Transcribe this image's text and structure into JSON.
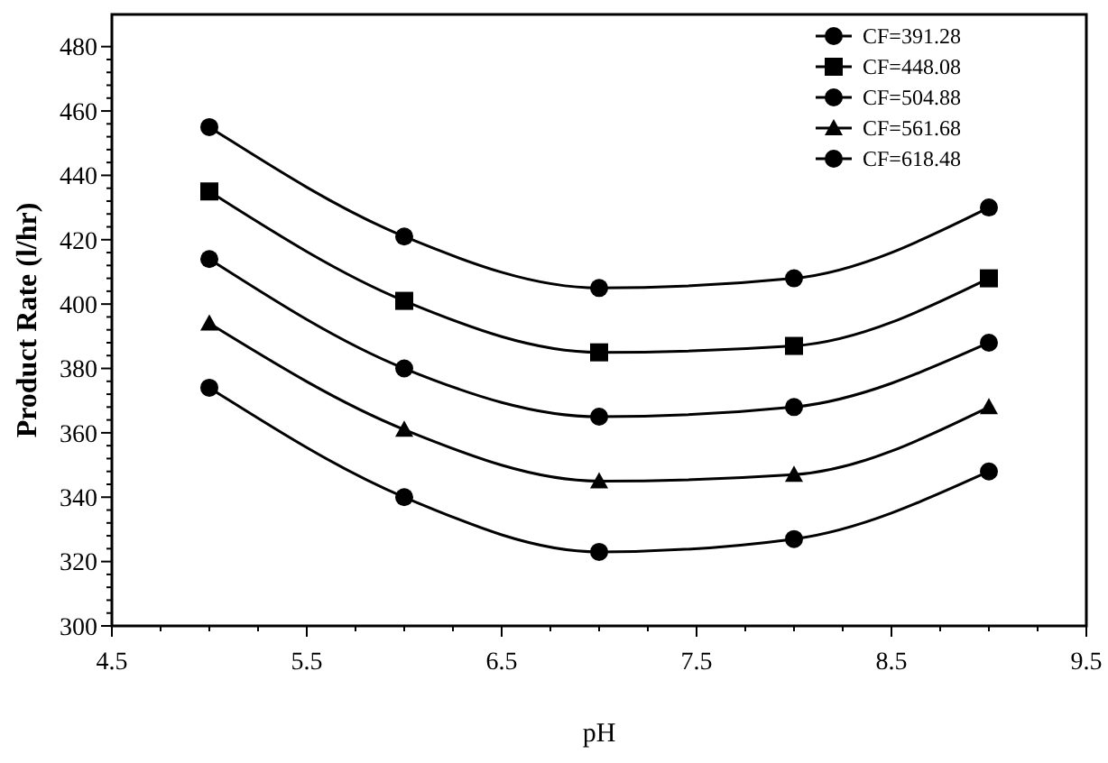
{
  "chart_data": {
    "type": "line",
    "xlabel": "pH",
    "ylabel": "Product Rate (l/hr)",
    "x": [
      5,
      6,
      7,
      8,
      9
    ],
    "series": [
      {
        "name": "CF=391.28",
        "color": "#000000",
        "marker": "circle",
        "values": [
          455,
          421,
          405,
          408,
          430
        ]
      },
      {
        "name": "CF=448.08",
        "color": "#000000",
        "marker": "square",
        "values": [
          435,
          401,
          385,
          387,
          408
        ]
      },
      {
        "name": "CF=504.88",
        "color": "#000000",
        "marker": "circle",
        "values": [
          414,
          380,
          365,
          368,
          388
        ]
      },
      {
        "name": "CF=561.68",
        "color": "#000000",
        "marker": "triangle",
        "values": [
          394,
          361,
          345,
          347,
          368
        ]
      },
      {
        "name": "CF=618.48",
        "color": "#000000",
        "marker": "circle",
        "values": [
          374,
          340,
          323,
          327,
          348
        ]
      }
    ],
    "xlim": [
      4.5,
      9.5
    ],
    "xticks": [
      4.5,
      5.5,
      6.5,
      7.5,
      8.5,
      9.5
    ],
    "ylim": [
      300,
      490
    ],
    "yticks": [
      300,
      320,
      340,
      360,
      380,
      400,
      420,
      440,
      460,
      480
    ],
    "grid": false,
    "legend": "top right",
    "line_style": "solid"
  }
}
